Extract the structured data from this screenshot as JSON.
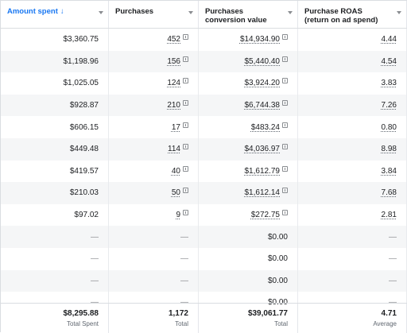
{
  "columns": [
    {
      "label": "Amount spent",
      "sorted": true,
      "sort_glyph": "↓"
    },
    {
      "label": "Purchases"
    },
    {
      "label": "Purchases conversion value"
    },
    {
      "label": "Purchase ROAS (return on ad spend)"
    }
  ],
  "rows": [
    {
      "amount": "$3,360.75",
      "purchases": "452",
      "value": "$14,934.90",
      "roas": "4.44"
    },
    {
      "amount": "$1,198.96",
      "purchases": "156",
      "value": "$5,440.40",
      "roas": "4.54"
    },
    {
      "amount": "$1,025.05",
      "purchases": "124",
      "value": "$3,924.20",
      "roas": "3.83"
    },
    {
      "amount": "$928.87",
      "purchases": "210",
      "value": "$6,744.38",
      "roas": "7.26"
    },
    {
      "amount": "$606.15",
      "purchases": "17",
      "value": "$483.24",
      "roas": "0.80"
    },
    {
      "amount": "$449.48",
      "purchases": "114",
      "value": "$4,036.97",
      "roas": "8.98"
    },
    {
      "amount": "$419.57",
      "purchases": "40",
      "value": "$1,612.79",
      "roas": "3.84"
    },
    {
      "amount": "$210.03",
      "purchases": "50",
      "value": "$1,612.14",
      "roas": "7.68"
    },
    {
      "amount": "$97.02",
      "purchases": "9",
      "value": "$272.75",
      "roas": "2.81"
    },
    {
      "amount": "—",
      "purchases": "—",
      "value": "$0.00",
      "roas": "—"
    },
    {
      "amount": "—",
      "purchases": "—",
      "value": "$0.00",
      "roas": "—"
    },
    {
      "amount": "—",
      "purchases": "—",
      "value": "$0.00",
      "roas": "—"
    },
    {
      "amount": "—",
      "purchases": "—",
      "value": "$0.00",
      "roas": "—"
    }
  ],
  "summary": [
    {
      "value": "$8,295.88",
      "label": "Total Spent"
    },
    {
      "value": "1,172",
      "label": "Total"
    },
    {
      "value": "$39,061.77",
      "label": "Total"
    },
    {
      "value": "4.71",
      "label": "Average"
    }
  ],
  "colors": {
    "accent": "#1877f2",
    "border": "#dadde1",
    "alt_row": "#f5f6f7"
  },
  "icons": {
    "sort": "arrow-down-icon",
    "column_menu": "chevron-down-icon",
    "attribution": "info-icon"
  }
}
